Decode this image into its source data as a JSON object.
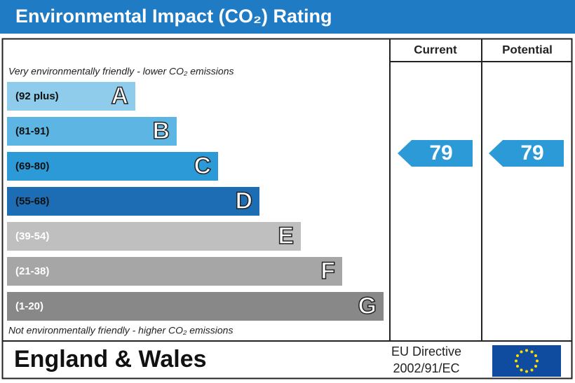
{
  "title": "Environmental Impact (CO₂) Rating",
  "columns": [
    "Current",
    "Potential"
  ],
  "top_note": "Very environmentally friendly - lower CO₂ emissions",
  "bottom_note": "Not environmentally friendly - higher CO₂ emissions",
  "bands": [
    {
      "range": "(92 plus)",
      "letter": "A",
      "color": "#8fcbea"
    },
    {
      "range": "(81-91)",
      "letter": "B",
      "color": "#5cb5e2"
    },
    {
      "range": "(69-80)",
      "letter": "C",
      "color": "#2b9ad7"
    },
    {
      "range": "(55-68)",
      "letter": "D",
      "color": "#1d6db4"
    },
    {
      "range": "(39-54)",
      "letter": "E",
      "color": "#bfbfbf"
    },
    {
      "range": "(21-38)",
      "letter": "F",
      "color": "#a6a6a6"
    },
    {
      "range": "(1-20)",
      "letter": "G",
      "color": "#888888"
    }
  ],
  "current": 79,
  "potential": 79,
  "rating_color": "#2b9ad7",
  "footer": {
    "region": "England & Wales",
    "directive": [
      "EU Directive",
      "2002/91/EC"
    ]
  }
}
